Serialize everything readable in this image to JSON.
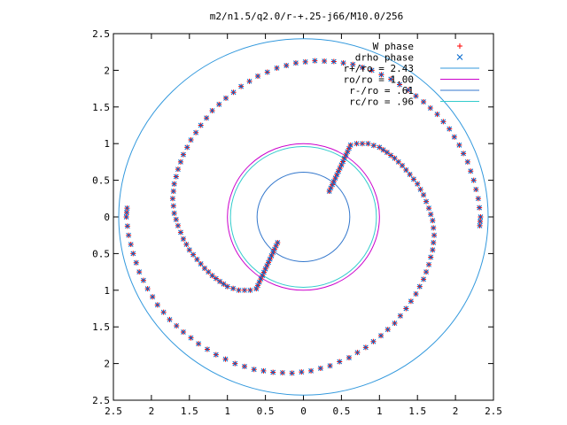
{
  "chart_data": {
    "type": "scatter",
    "title": "m2/n1.5/q2.0/r-+.25-j66/M10.0/256",
    "xlabel": "",
    "ylabel": "",
    "xlim": [
      -2.5,
      2.5
    ],
    "ylim": [
      -2.5,
      2.5
    ],
    "x_ticks": [
      -2.5,
      -2,
      -1.5,
      -1,
      -0.5,
      0,
      0.5,
      1,
      1.5,
      2,
      2.5
    ],
    "y_ticks": [
      -2.5,
      -2,
      -1.5,
      -1,
      -0.5,
      0,
      0.5,
      1,
      1.5,
      2,
      2.5
    ],
    "x_tick_labels": [
      "2.5",
      "2",
      "1.5",
      "1",
      "0.5",
      "0",
      "0.5",
      "1",
      "1.5",
      "2",
      "2.5"
    ],
    "y_tick_labels": [
      "2.5",
      "2",
      "1.5",
      "1",
      "0.5",
      "0",
      "0.5",
      "1",
      "1.5",
      "2",
      "2.5"
    ],
    "grid": false,
    "legend_position": "top-right",
    "series": [
      {
        "name": "W phase",
        "marker": "plus",
        "color": "#ff0000"
      },
      {
        "name": "drho phase",
        "marker": "cross",
        "color": "#0066cc"
      }
    ],
    "spiral_points": [
      [
        0.7,
        1.0
      ],
      [
        0.85,
        1.0
      ],
      [
        1.0,
        0.95
      ],
      [
        1.1,
        0.88
      ],
      [
        1.2,
        0.8
      ],
      [
        1.3,
        0.7
      ],
      [
        1.4,
        0.58
      ],
      [
        1.5,
        0.45
      ],
      [
        1.58,
        0.3
      ],
      [
        1.65,
        0.12
      ],
      [
        1.7,
        -0.05
      ],
      [
        1.72,
        -0.25
      ],
      [
        1.7,
        -0.45
      ],
      [
        1.65,
        -0.65
      ],
      [
        1.58,
        -0.85
      ],
      [
        1.48,
        -1.05
      ],
      [
        1.35,
        -1.25
      ],
      [
        1.2,
        -1.45
      ],
      [
        1.02,
        -1.62
      ],
      [
        0.82,
        -1.78
      ],
      [
        0.6,
        -1.92
      ],
      [
        0.35,
        -2.03
      ],
      [
        0.1,
        -2.1
      ],
      [
        -0.15,
        -2.13
      ],
      [
        -0.4,
        -2.12
      ],
      [
        -0.65,
        -2.08
      ],
      [
        -0.9,
        -2.0
      ],
      [
        -1.15,
        -1.88
      ],
      [
        -1.38,
        -1.73
      ],
      [
        -1.58,
        -1.57
      ],
      [
        -1.76,
        -1.4
      ],
      [
        -1.92,
        -1.2
      ],
      [
        -2.05,
        -0.98
      ],
      [
        -2.16,
        -0.75
      ],
      [
        -2.24,
        -0.5
      ],
      [
        -2.3,
        -0.25
      ],
      [
        -2.33,
        0.0
      ],
      [
        -2.32,
        0.12
      ]
    ],
    "reference_circles": [
      {
        "name": "r+/ro = 2.43",
        "radius": 2.43,
        "color": "#3399dd"
      },
      {
        "name": "ro/ro = 1.00",
        "radius": 1.0,
        "color": "#cc00cc"
      },
      {
        "name": "r-/ro = .61",
        "radius": 0.61,
        "color": "#3377cc"
      },
      {
        "name": "rc/ro = .96",
        "radius": 0.96,
        "color": "#33cccc"
      }
    ]
  }
}
